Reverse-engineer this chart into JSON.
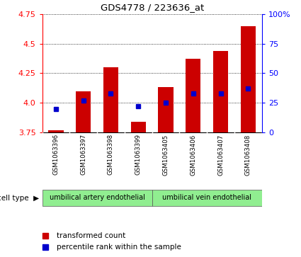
{
  "title": "GDS4778 / 223636_at",
  "samples": [
    "GSM1063396",
    "GSM1063397",
    "GSM1063398",
    "GSM1063399",
    "GSM1063405",
    "GSM1063406",
    "GSM1063407",
    "GSM1063408"
  ],
  "transformed_count": [
    3.77,
    4.1,
    4.3,
    3.84,
    4.13,
    4.37,
    4.44,
    4.65
  ],
  "percentile_rank": [
    20,
    27,
    33,
    22,
    25,
    33,
    33,
    37
  ],
  "bar_bottom": 3.75,
  "ylim_left": [
    3.75,
    4.75
  ],
  "ylim_right": [
    0,
    100
  ],
  "yticks_left": [
    3.75,
    4.0,
    4.25,
    4.5,
    4.75
  ],
  "yticks_right": [
    0,
    25,
    50,
    75,
    100
  ],
  "ytick_labels_right": [
    "0",
    "25",
    "50",
    "75",
    "100%"
  ],
  "bar_color": "#cc0000",
  "dot_color": "#0000cc",
  "cell_type_groups": [
    {
      "label": "umbilical artery endothelial",
      "start": 0,
      "end": 4
    },
    {
      "label": "umbilical vein endothelial",
      "start": 4,
      "end": 8
    }
  ],
  "legend_items": [
    {
      "label": "transformed count",
      "color": "#cc0000"
    },
    {
      "label": "percentile rank within the sample",
      "color": "#0000cc"
    }
  ],
  "cell_type_label": "cell type",
  "group_color": "#90EE90",
  "tick_bg_color": "#c8c8c8",
  "background_color": "#ffffff"
}
